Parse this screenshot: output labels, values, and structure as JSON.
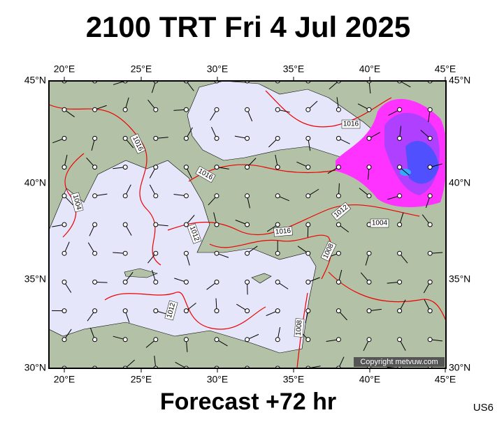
{
  "header": {
    "title": "2100 TRT Fri 4 Jul 2025"
  },
  "map": {
    "lon_labels": [
      "20°E",
      "25°E",
      "30°E",
      "35°E",
      "40°E",
      "45°E"
    ],
    "lat_labels": [
      "45°N",
      "40°N",
      "35°N",
      "30°N"
    ],
    "isobar_labels": [
      "1016",
      "1016",
      "1016",
      "1004",
      "1012",
      "1016",
      "1012",
      "1004",
      "1008",
      "1012",
      "1008"
    ],
    "copyright": "Copyright metvuw.com"
  },
  "footer": {
    "forecast": "Forecast +72 hr",
    "code": "US6"
  }
}
